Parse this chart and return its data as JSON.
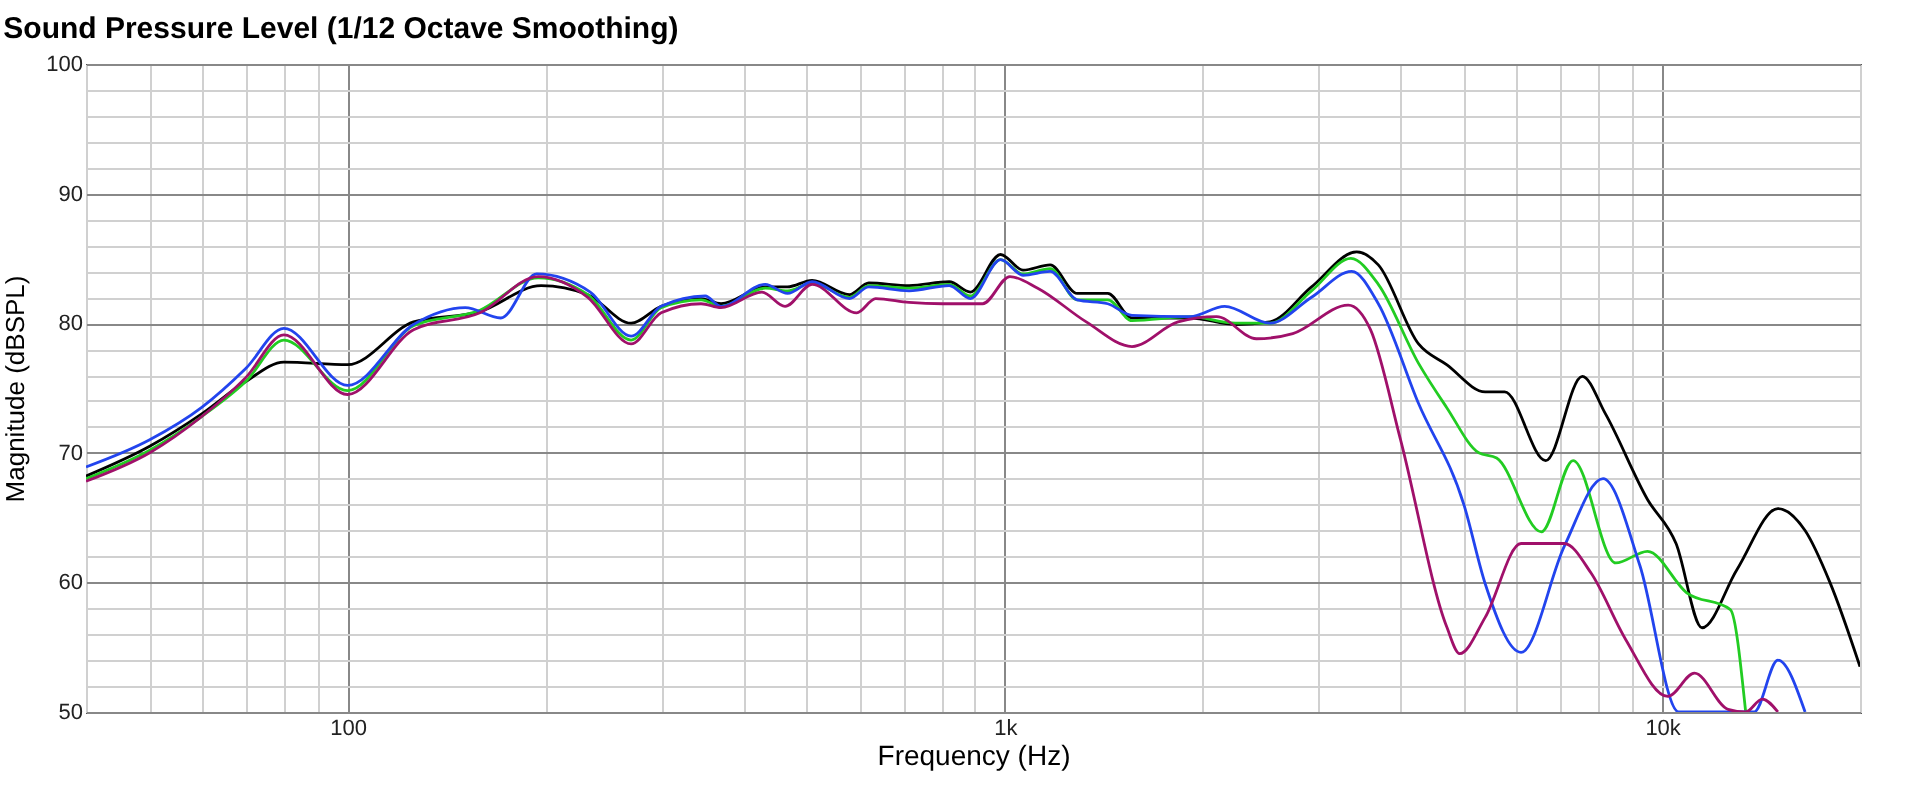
{
  "chart_data": {
    "type": "line",
    "title": "Sound Pressure Level (1/12 Octave Smoothing)",
    "xlabel": "Frequency (Hz)",
    "ylabel": "Magnitude (dBSPL)",
    "log": "x",
    "grid": true,
    "legend": false,
    "marker": "none",
    "line_style": "solid",
    "xlim": [
      40,
      20000
    ],
    "ylim": [
      50,
      100
    ],
    "xticks": [
      {
        "value": 40,
        "label": null
      },
      {
        "value": 50,
        "label": null
      },
      {
        "value": 60,
        "label": null
      },
      {
        "value": 70,
        "label": null
      },
      {
        "value": 80,
        "label": null
      },
      {
        "value": 90,
        "label": null
      },
      100,
      {
        "value": 200,
        "label": null
      },
      {
        "value": 300,
        "label": null
      },
      {
        "value": 400,
        "label": null
      },
      {
        "value": 500,
        "label": null
      },
      {
        "value": 600,
        "label": null
      },
      {
        "value": 700,
        "label": null
      },
      {
        "value": 800,
        "label": null
      },
      {
        "value": 900,
        "label": null
      },
      {
        "value": 1000,
        "label": "1k"
      },
      {
        "value": 2000,
        "label": null
      },
      {
        "value": 3000,
        "label": null
      },
      {
        "value": 4000,
        "label": null
      },
      {
        "value": 5000,
        "label": null
      },
      {
        "value": 6000,
        "label": null
      },
      {
        "value": 7000,
        "label": null
      },
      {
        "value": 8000,
        "label": null
      },
      {
        "value": 9000,
        "label": null
      },
      {
        "value": 10000,
        "label": "10k"
      },
      {
        "value": 20000,
        "label": null
      }
    ],
    "yticks": [
      50,
      {
        "value": 52,
        "label": null
      },
      {
        "value": 54,
        "label": null
      },
      {
        "value": 56,
        "label": null
      },
      {
        "value": 58,
        "label": null
      },
      60,
      {
        "value": 62,
        "label": null
      },
      {
        "value": 64,
        "label": null
      },
      {
        "value": 66,
        "label": null
      },
      {
        "value": 68,
        "label": null
      },
      70,
      {
        "value": 72,
        "label": null
      },
      {
        "value": 74,
        "label": null
      },
      {
        "value": 76,
        "label": null
      },
      {
        "value": 78,
        "label": null
      },
      80,
      {
        "value": 82,
        "label": null
      },
      {
        "value": 84,
        "label": null
      },
      {
        "value": 86,
        "label": null
      },
      {
        "value": 88,
        "label": null
      },
      90,
      {
        "value": 92,
        "label": null
      },
      {
        "value": 94,
        "label": null
      },
      {
        "value": 96,
        "label": null
      },
      {
        "value": 98,
        "label": null
      },
      100
    ],
    "series": [
      {
        "color": "#000000",
        "x": [
          40,
          50,
          60,
          70,
          80,
          100,
          126,
          159,
          197,
          232,
          270,
          300,
          345,
          370,
          432,
          467,
          509,
          580,
          621,
          715,
          823,
          886,
          985,
          1066,
          1172,
          1288,
          1434,
          1561,
          1913,
          2242,
          2530,
          2928,
          3430,
          3700,
          4260,
          4700,
          5380,
          5760,
          6650,
          7560,
          8200,
          9500,
          10500,
          11500,
          13000,
          15000,
          16500,
          18000,
          20000
        ],
        "values": [
          68.2,
          70.5,
          73,
          75.5,
          77,
          76.8,
          80.1,
          80.9,
          82.9,
          82.2,
          80,
          81.3,
          81.9,
          81.5,
          82.8,
          82.8,
          83.3,
          82.2,
          83.1,
          82.9,
          83.2,
          82.4,
          85.3,
          84.1,
          84.5,
          82.3,
          82.3,
          80.4,
          80.4,
          79.9,
          80.1,
          82.8,
          85.5,
          84.5,
          78.4,
          76.8,
          74.7,
          74.7,
          69.4,
          75.9,
          73,
          66.4,
          63,
          56.5,
          61,
          65.7,
          64,
          60,
          53.5
        ]
      },
      {
        "color": "#22cc22",
        "x": [
          40,
          50,
          60,
          70,
          80,
          100,
          126,
          159,
          195,
          232,
          270,
          300,
          345,
          370,
          432,
          467,
          509,
          580,
          621,
          715,
          823,
          886,
          985,
          1066,
          1172,
          1288,
          1434,
          1561,
          1913,
          2242,
          2530,
          2928,
          3360,
          3700,
          4260,
          4700,
          5260,
          5600,
          6550,
          7320,
          8500,
          9500,
          10900,
          12700,
          13400
        ],
        "values": [
          68,
          70.2,
          72.8,
          75.5,
          78.7,
          74.8,
          79.8,
          81,
          83.5,
          82.2,
          78.7,
          81.2,
          81.8,
          81.3,
          82.7,
          82.5,
          83.1,
          82,
          82.9,
          82.7,
          83,
          82.1,
          84.9,
          83.8,
          84.2,
          81.8,
          81.8,
          80.2,
          80.5,
          80,
          80,
          82.5,
          85,
          83,
          76.9,
          73.5,
          70,
          69.6,
          63.9,
          69.4,
          61.5,
          62.4,
          59.2,
          57.9,
          50
        ]
      },
      {
        "color": "#2244ee",
        "x": [
          40,
          50,
          60,
          70,
          80,
          100,
          126,
          151,
          171,
          194,
          234,
          270,
          300,
          350,
          370,
          432,
          467,
          509,
          580,
          621,
          715,
          823,
          886,
          985,
          1066,
          1172,
          1288,
          1434,
          1561,
          1913,
          2160,
          2530,
          2928,
          3370,
          3700,
          4260,
          5000,
          5380,
          6100,
          7100,
          8130,
          9250,
          10600,
          13800,
          15000,
          16500
        ],
        "values": [
          68.9,
          71,
          73.5,
          76.5,
          79.6,
          75.2,
          79.9,
          81.2,
          80.4,
          83.8,
          82.4,
          79,
          81.3,
          82.1,
          81.3,
          83,
          82.3,
          83.2,
          81.9,
          82.8,
          82.5,
          82.9,
          81.9,
          84.9,
          83.7,
          84,
          81.8,
          81.5,
          80.6,
          80.5,
          81.3,
          80,
          82,
          84,
          81.5,
          73.8,
          65.9,
          59.9,
          54.6,
          62.8,
          68,
          61.3,
          50,
          50,
          54,
          50
        ]
      },
      {
        "color": "#a0106a",
        "x": [
          40,
          50,
          60,
          70,
          80,
          100,
          126,
          159,
          195,
          232,
          270,
          300,
          345,
          370,
          427,
          463,
          509,
          595,
          636,
          715,
          804,
          925,
          1018,
          1122,
          1330,
          1561,
          1834,
          2100,
          2414,
          2742,
          3330,
          3600,
          4000,
          4700,
          4920,
          5380,
          6100,
          7100,
          7800,
          8800,
          10200,
          11200,
          12600,
          13400,
          14200,
          15000
        ],
        "values": [
          67.8,
          70,
          72.8,
          75.8,
          79.1,
          74.5,
          79.5,
          80.8,
          83.6,
          82,
          78.4,
          80.8,
          81.5,
          81.2,
          82.4,
          81.3,
          83,
          80.8,
          81.9,
          81.6,
          81.5,
          81.5,
          83.6,
          82.7,
          80.1,
          78.2,
          80.1,
          80.5,
          78.8,
          79.2,
          81.4,
          79.5,
          71,
          56.6,
          54.5,
          57.3,
          63,
          63,
          60.7,
          55.6,
          51.2,
          53,
          50.2,
          50,
          51,
          50
        ]
      }
    ]
  }
}
